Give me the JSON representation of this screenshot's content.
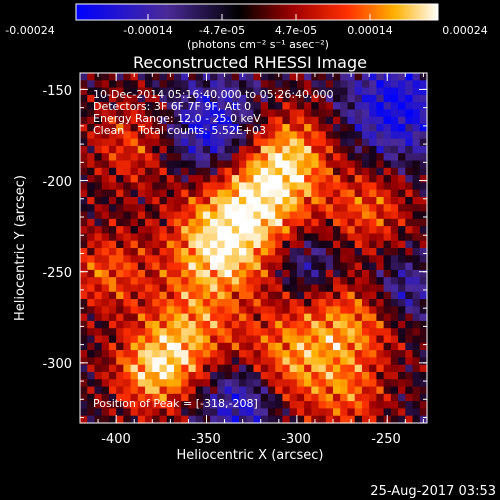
{
  "colorbar": {
    "tick_labels": [
      "-0.00024",
      "-0.00014",
      "-4.7e-05",
      "4.7e-05",
      "0.00014",
      "0.00024"
    ],
    "units": "(photons cm⁻² s⁻¹ asec⁻²)",
    "range": [
      -0.00024,
      0.00024
    ]
  },
  "chart_data": {
    "type": "heatmap",
    "title": "Reconstructed RHESSI Image",
    "xlabel": "Heliocentric X (arcsec)",
    "ylabel": "Heliocentric Y (arcsec)",
    "xlim": [
      -420,
      -228
    ],
    "ylim": [
      -333,
      -141
    ],
    "x_ticks": [
      -400,
      -350,
      -300,
      -250
    ],
    "y_ticks": [
      -150,
      -200,
      -250,
      -300
    ],
    "grid": false,
    "annotations": [
      "10-Dec-2014 05:16:40.000 to 05:26:40.000",
      "Detectors: 3F 6F 7F 9F, Att 0",
      "Energy Range: 12.0 - 25.0 keV",
      "Clean    Total counts: 5.52E+03"
    ],
    "peak_label": "Position of Peak = [-318,-208]",
    "peak": [
      -318,
      -208
    ],
    "colormap": "blue-purple-red-orange-yellow-white",
    "values": "approximate spatial intensity; bright ridge from upper-center to lower-left and lower-right, purple negative regions at right-upper and lower-center"
  },
  "footer": {
    "timestamp": "25-Aug-2017 03:53"
  }
}
